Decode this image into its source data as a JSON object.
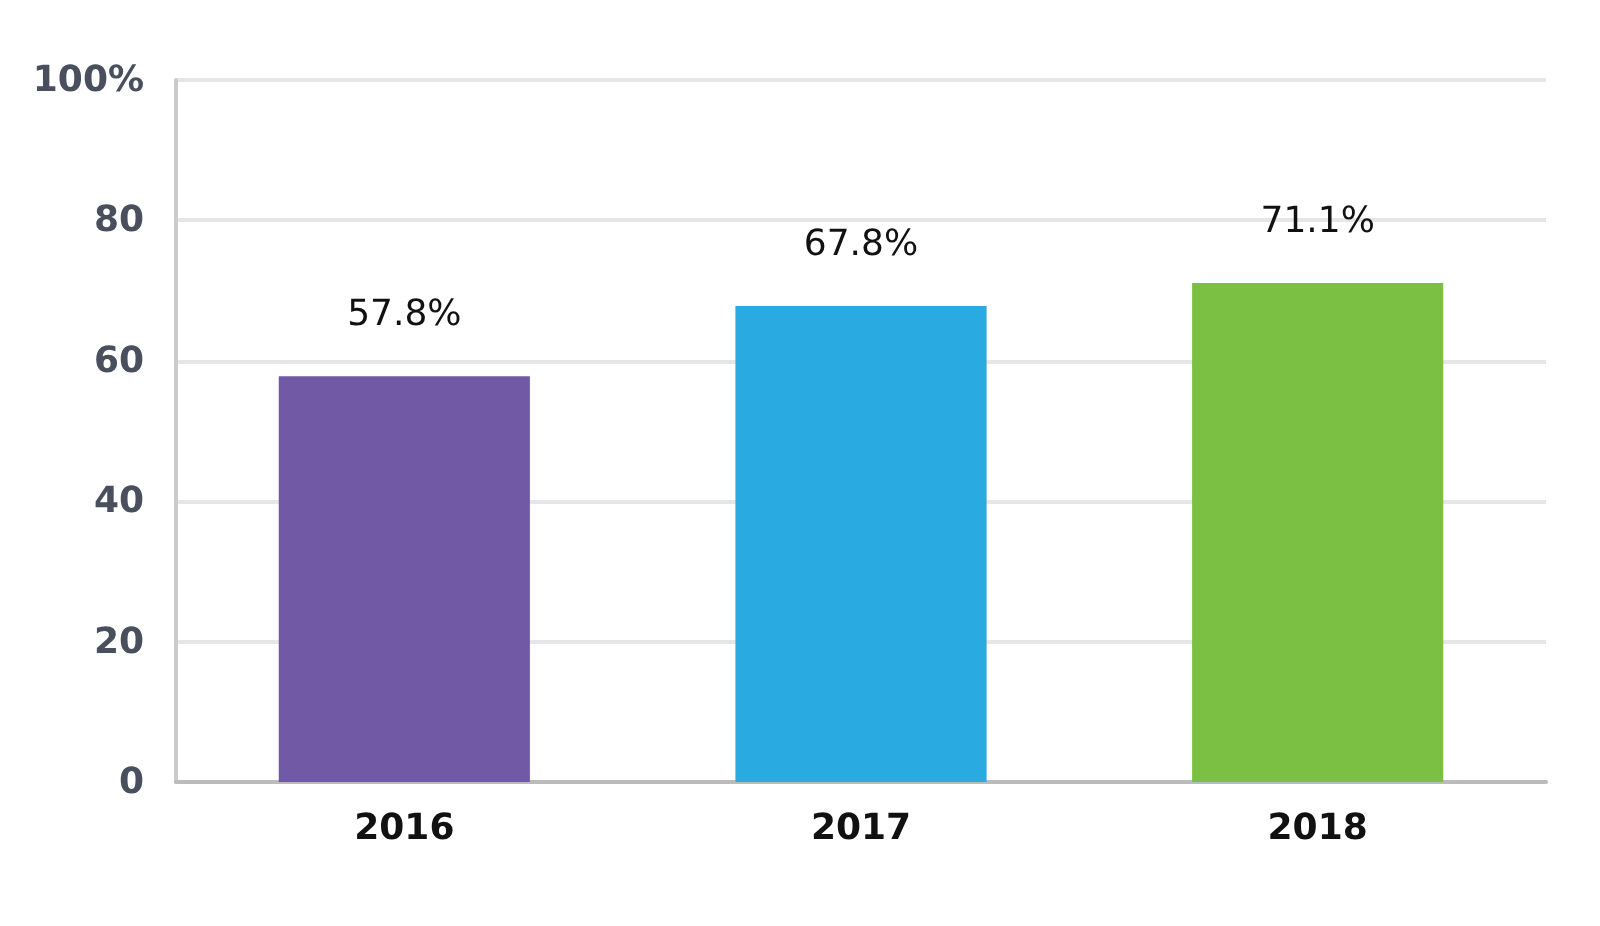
{
  "chart_data": {
    "type": "bar",
    "categories": [
      "2016",
      "2017",
      "2018"
    ],
    "values": [
      57.8,
      67.8,
      71.1
    ],
    "colors": [
      "#7159a6",
      "#29abe2",
      "#7bc043"
    ],
    "value_labels": [
      "57.8%",
      "67.8%",
      "71.1%"
    ],
    "ylim": [
      0,
      100
    ],
    "yticks": [
      0,
      20,
      40,
      60,
      80,
      {
        "value": 100,
        "label": "100%"
      }
    ],
    "grid": "y"
  }
}
